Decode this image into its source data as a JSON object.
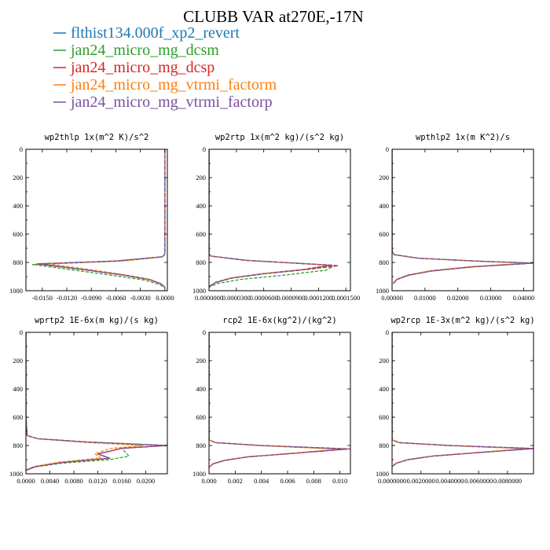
{
  "figure": {
    "title": "CLUBB VAR at270E,-17N"
  },
  "legend": [
    {
      "label": "flthist134.000f_xp2_revert",
      "color": "#1f77b4"
    },
    {
      "label": "jan24_micro_mg_dcsm",
      "color": "#2ca02c"
    },
    {
      "label": "jan24_micro_mg_dcsp",
      "color": "#d62728"
    },
    {
      "label": "jan24_micro_mg_vtrmi_factorm",
      "color": "#ff7f0e"
    },
    {
      "label": "jan24_micro_mg_vtrmi_factorp",
      "color": "#7b4fa0"
    }
  ],
  "chart_data": [
    {
      "type": "line",
      "title": "wp2thlp  1x(m^2 K)/s^2",
      "xlim": [
        -0.017,
        0.0003
      ],
      "ylim": [
        1000,
        0
      ],
      "x_ticks": [
        -0.015,
        -0.012,
        -0.009,
        -0.006,
        -0.003,
        0.0
      ],
      "x_tick_labels": [
        "-0.0150",
        "-0.0120",
        "-0.0090",
        "-0.0060",
        "-0.0030",
        "0.0000"
      ],
      "y_ticks": [
        0,
        200,
        400,
        600,
        800,
        1000
      ],
      "y_tick_labels": [
        "0",
        "200",
        "400",
        "600",
        "800",
        "1000"
      ],
      "series": [
        {
          "color": "#1f77b4",
          "x": [
            0.0,
            0.0,
            0.0,
            -0.0003,
            -0.006,
            -0.0155,
            -0.01,
            -0.005,
            -0.002,
            -0.0005,
            0.0
          ],
          "y": [
            0,
            600,
            740,
            760,
            790,
            810,
            850,
            890,
            920,
            950,
            975
          ]
        },
        {
          "color": "#2ca02c",
          "x": [
            0.0,
            0.0,
            0.0,
            -0.0003,
            -0.006,
            -0.0162,
            -0.011,
            -0.006,
            -0.0025,
            -0.0007,
            0.0
          ],
          "y": [
            0,
            600,
            740,
            760,
            792,
            815,
            855,
            895,
            925,
            955,
            978
          ]
        },
        {
          "color": "#d62728",
          "x": [
            0.0,
            0.0,
            0.0,
            -0.0003,
            -0.006,
            -0.0157,
            -0.01,
            -0.005,
            -0.002,
            -0.0005,
            0.0
          ],
          "y": [
            0,
            600,
            740,
            760,
            790,
            811,
            851,
            891,
            921,
            951,
            976
          ]
        },
        {
          "color": "#ff7f0e",
          "x": [
            0.0,
            0.0,
            0.0,
            -0.0003,
            -0.005,
            -0.0145,
            -0.0095,
            -0.0048,
            -0.0019,
            -0.0005,
            0.0
          ],
          "y": [
            0,
            600,
            740,
            762,
            790,
            808,
            848,
            888,
            918,
            948,
            974
          ]
        },
        {
          "color": "#7b4fa0",
          "x": [
            0.0,
            0.0,
            0.0,
            -0.0003,
            -0.006,
            -0.0154,
            -0.01,
            -0.005,
            -0.002,
            -0.0005,
            0.0
          ],
          "y": [
            0,
            600,
            740,
            760,
            790,
            810,
            850,
            890,
            920,
            950,
            975
          ]
        }
      ]
    },
    {
      "type": "line",
      "title": "wp2rtp  1x(m^2 kg)/(s^2 kg)",
      "xlim": [
        0.0,
        0.000155
      ],
      "ylim": [
        1000,
        0
      ],
      "x_ticks": [
        0.0,
        3e-05,
        6e-05,
        9e-05,
        0.00012,
        0.00015
      ],
      "x_tick_labels": [
        "0.0000000",
        "0.0000300",
        "0.0000600",
        "0.0000900",
        "0.0001200",
        "0.0001500"
      ],
      "y_ticks": [
        0,
        200,
        400,
        600,
        800,
        1000
      ],
      "y_tick_labels": [
        "0",
        "200",
        "400",
        "600",
        "800",
        "1000"
      ],
      "series": [
        {
          "color": "#1f77b4",
          "x": [
            0.0,
            0.0,
            0.0,
            2e-06,
            4e-05,
            0.000135,
            0.000105,
            6e-05,
            2.5e-05,
            8e-06,
            0.0
          ],
          "y": [
            0,
            600,
            740,
            755,
            785,
            820,
            850,
            880,
            910,
            940,
            970
          ]
        },
        {
          "color": "#2ca02c",
          "x": [
            0.0,
            0.0,
            0.0,
            2e-06,
            4.2e-05,
            0.000138,
            0.000128,
            8.2e-05,
            3.5e-05,
            1e-05,
            0.0
          ],
          "y": [
            0,
            600,
            740,
            755,
            785,
            822,
            855,
            890,
            920,
            948,
            975
          ]
        },
        {
          "color": "#d62728",
          "x": [
            0.0,
            0.0,
            0.0,
            2e-06,
            4.1e-05,
            0.000142,
            0.000106,
            6e-05,
            2.5e-05,
            8e-06,
            0.0
          ],
          "y": [
            0,
            600,
            740,
            755,
            786,
            823,
            851,
            881,
            911,
            941,
            971
          ]
        },
        {
          "color": "#ff7f0e",
          "x": [
            0.0,
            0.0,
            0.0,
            2e-06,
            4e-05,
            0.000132,
            0.000103,
            5.8e-05,
            2.4e-05,
            7e-06,
            0.0
          ],
          "y": [
            0,
            600,
            740,
            756,
            786,
            818,
            849,
            879,
            909,
            939,
            969
          ]
        },
        {
          "color": "#7b4fa0",
          "x": [
            0.0,
            0.0,
            0.0,
            2e-06,
            4e-05,
            0.000136,
            0.000104,
            6e-05,
            2.5e-05,
            8e-06,
            0.0
          ],
          "y": [
            0,
            600,
            740,
            755,
            785,
            820,
            850,
            880,
            910,
            940,
            970
          ]
        }
      ]
    },
    {
      "type": "line",
      "title": "wpthlp2  1x(m K^2)/s",
      "xlim": [
        0.0,
        0.043
      ],
      "ylim": [
        1000,
        0
      ],
      "x_ticks": [
        0.0,
        0.01,
        0.02,
        0.03,
        0.04
      ],
      "x_tick_labels": [
        "0.00000",
        "0.01000",
        "0.02000",
        "0.03000",
        "0.04000"
      ],
      "y_ticks": [
        0,
        200,
        400,
        600,
        800,
        1000
      ],
      "y_tick_labels": [
        "0",
        "200",
        "400",
        "600",
        "800",
        "1000"
      ],
      "series": [
        {
          "color": "#1f77b4",
          "x": [
            0.0,
            0.0,
            0.0,
            0.0006,
            0.008,
            0.025,
            0.043,
            0.025,
            0.012,
            0.005,
            0.0015,
            0.0003
          ],
          "y": [
            0,
            600,
            720,
            745,
            770,
            790,
            805,
            830,
            860,
            890,
            920,
            950
          ]
        },
        {
          "color": "#2ca02c",
          "x": [
            0.0,
            0.0,
            0.0,
            0.0006,
            0.008,
            0.025,
            0.0425,
            0.025,
            0.012,
            0.005,
            0.0015,
            0.0003
          ],
          "y": [
            0,
            600,
            720,
            745,
            770,
            790,
            806,
            831,
            861,
            891,
            921,
            951
          ]
        },
        {
          "color": "#d62728",
          "x": [
            0.0,
            0.0,
            0.0,
            0.0006,
            0.008,
            0.025,
            0.0428,
            0.025,
            0.012,
            0.005,
            0.0015,
            0.0003
          ],
          "y": [
            0,
            600,
            720,
            745,
            770,
            790,
            805,
            830,
            860,
            890,
            920,
            950
          ]
        },
        {
          "color": "#ff7f0e",
          "x": [
            0.0,
            0.0,
            0.0,
            0.0006,
            0.008,
            0.025,
            0.042,
            0.024,
            0.0115,
            0.0048,
            0.0014,
            0.0003
          ],
          "y": [
            0,
            600,
            720,
            746,
            771,
            791,
            804,
            829,
            859,
            889,
            919,
            949
          ]
        },
        {
          "color": "#7b4fa0",
          "x": [
            0.0,
            0.0,
            0.0,
            0.0006,
            0.008,
            0.025,
            0.043,
            0.025,
            0.012,
            0.005,
            0.0015,
            0.0003
          ],
          "y": [
            0,
            600,
            720,
            745,
            770,
            790,
            805,
            830,
            860,
            890,
            920,
            950
          ]
        }
      ]
    },
    {
      "type": "line",
      "title": "wprtp2  1E-6x(m kg)/(s kg)",
      "xlim": [
        0.0,
        0.0236
      ],
      "ylim": [
        1000,
        0
      ],
      "x_ticks": [
        0.0,
        0.004,
        0.008,
        0.012,
        0.016,
        0.02
      ],
      "x_tick_labels": [
        "0.0000",
        "0.0040",
        "0.0080",
        "0.0120",
        "0.0160",
        "0.0200"
      ],
      "y_ticks": [
        0,
        200,
        400,
        600,
        800,
        1000
      ],
      "y_tick_labels": [
        "0",
        "200",
        "400",
        "600",
        "800",
        "1000"
      ],
      "series": [
        {
          "color": "#1f77b4",
          "x": [
            0.0,
            0.0,
            0.0002,
            0.002,
            0.01,
            0.0235,
            0.016,
            0.012,
            0.014,
            0.006,
            0.0015,
            0.0
          ],
          "y": [
            0,
            600,
            730,
            752,
            775,
            800,
            820,
            860,
            890,
            920,
            950,
            975
          ]
        },
        {
          "color": "#2ca02c",
          "x": [
            0.0,
            0.0,
            0.0002,
            0.002,
            0.01,
            0.0232,
            0.016,
            0.0172,
            0.014,
            0.006,
            0.0015,
            0.0
          ],
          "y": [
            0,
            600,
            730,
            752,
            775,
            800,
            820,
            875,
            900,
            925,
            952,
            978
          ]
        },
        {
          "color": "#d62728",
          "x": [
            0.0,
            0.0,
            0.0002,
            0.002,
            0.01,
            0.0236,
            0.016,
            0.012,
            0.014,
            0.006,
            0.0015,
            0.0
          ],
          "y": [
            0,
            600,
            730,
            752,
            775,
            800,
            820,
            860,
            890,
            920,
            950,
            975
          ]
        },
        {
          "color": "#ff7f0e",
          "x": [
            0.0,
            0.0,
            0.0002,
            0.002,
            0.009,
            0.0195,
            0.014,
            0.0115,
            0.0125,
            0.0055,
            0.0014,
            0.0
          ],
          "y": [
            0,
            600,
            730,
            753,
            776,
            800,
            822,
            858,
            888,
            918,
            948,
            973
          ]
        },
        {
          "color": "#7b4fa0",
          "x": [
            0.0,
            0.0,
            0.0002,
            0.002,
            0.01,
            0.0234,
            0.016,
            0.012,
            0.014,
            0.006,
            0.0015,
            0.0
          ],
          "y": [
            0,
            600,
            730,
            752,
            775,
            800,
            820,
            860,
            890,
            920,
            950,
            975
          ]
        }
      ]
    },
    {
      "type": "line",
      "title": "rcp2  1E-6x(kg^2)/(kg^2)",
      "xlim": [
        0.0,
        0.0108
      ],
      "ylim": [
        1000,
        0
      ],
      "x_ticks": [
        0.0,
        0.002,
        0.004,
        0.006,
        0.008,
        0.01
      ],
      "x_tick_labels": [
        "0.000",
        "0.002",
        "0.004",
        "0.006",
        "0.008",
        "0.010"
      ],
      "y_ticks": [
        0,
        200,
        400,
        600,
        800,
        1000
      ],
      "y_tick_labels": [
        "0",
        "200",
        "400",
        "600",
        "800",
        "1000"
      ],
      "series": [
        {
          "color": "#1f77b4",
          "x": [
            0.0,
            0.0,
            0.0,
            0.0005,
            0.004,
            0.0106,
            0.0065,
            0.003,
            0.0012,
            0.0003,
            0.0
          ],
          "y": [
            0,
            600,
            760,
            780,
            800,
            825,
            855,
            880,
            905,
            930,
            955
          ]
        },
        {
          "color": "#2ca02c",
          "x": [
            0.0,
            0.0,
            0.0,
            0.0005,
            0.004,
            0.0103,
            0.0064,
            0.003,
            0.0012,
            0.0003,
            0.0
          ],
          "y": [
            0,
            600,
            760,
            780,
            800,
            826,
            856,
            881,
            906,
            931,
            956
          ]
        },
        {
          "color": "#d62728",
          "x": [
            0.0,
            0.0,
            0.0,
            0.0005,
            0.004,
            0.0108,
            0.0066,
            0.003,
            0.0012,
            0.0003,
            0.0
          ],
          "y": [
            0,
            600,
            760,
            780,
            800,
            824,
            854,
            879,
            904,
            929,
            954
          ]
        },
        {
          "color": "#ff7f0e",
          "x": [
            0.0,
            0.0,
            0.0,
            0.0005,
            0.0038,
            0.0099,
            0.0062,
            0.0029,
            0.0012,
            0.0003,
            0.0
          ],
          "y": [
            0,
            600,
            760,
            781,
            801,
            826,
            856,
            881,
            906,
            931,
            956
          ]
        },
        {
          "color": "#7b4fa0",
          "x": [
            0.0,
            0.0,
            0.0,
            0.0005,
            0.004,
            0.0105,
            0.0065,
            0.003,
            0.0012,
            0.0003,
            0.0
          ],
          "y": [
            0,
            600,
            760,
            780,
            800,
            825,
            855,
            880,
            905,
            930,
            955
          ]
        }
      ]
    },
    {
      "type": "line",
      "title": "wp2rcp  1E-3x(m^2 kg)/(s^2 kg)",
      "xlim": [
        0.0,
        0.0098
      ],
      "ylim": [
        1000,
        0
      ],
      "x_ticks": [
        0.0,
        0.002,
        0.004,
        0.006,
        0.008
      ],
      "x_tick_labels": [
        "0.0000000",
        "0.0020000",
        "0.0040000",
        "0.0060000",
        "0.0080000"
      ],
      "y_ticks": [
        0,
        200,
        400,
        600,
        800,
        1000
      ],
      "y_tick_labels": [
        "0",
        "200",
        "400",
        "600",
        "800",
        "1000"
      ],
      "series": [
        {
          "color": "#1f77b4",
          "x": [
            0.0,
            0.0,
            0.0,
            0.0005,
            0.004,
            0.0098,
            0.006,
            0.0028,
            0.0011,
            0.0003,
            0.0
          ],
          "y": [
            0,
            600,
            760,
            780,
            800,
            822,
            850,
            875,
            900,
            925,
            950
          ]
        },
        {
          "color": "#2ca02c",
          "x": [
            0.0,
            0.0,
            0.0,
            0.0005,
            0.004,
            0.0096,
            0.0059,
            0.0028,
            0.0011,
            0.0003,
            0.0
          ],
          "y": [
            0,
            600,
            760,
            780,
            800,
            823,
            851,
            876,
            901,
            926,
            951
          ]
        },
        {
          "color": "#d62728",
          "x": [
            0.0,
            0.0,
            0.0,
            0.0005,
            0.004,
            0.0098,
            0.0061,
            0.0028,
            0.0011,
            0.0003,
            0.0
          ],
          "y": [
            0,
            600,
            760,
            780,
            800,
            821,
            849,
            874,
            899,
            924,
            949
          ]
        },
        {
          "color": "#ff7f0e",
          "x": [
            0.0,
            0.0,
            0.0,
            0.0005,
            0.0038,
            0.0092,
            0.0057,
            0.0027,
            0.0011,
            0.0003,
            0.0
          ],
          "y": [
            0,
            600,
            760,
            781,
            801,
            822,
            851,
            876,
            901,
            926,
            951
          ]
        },
        {
          "color": "#7b4fa0",
          "x": [
            0.0,
            0.0,
            0.0,
            0.0005,
            0.004,
            0.0097,
            0.006,
            0.0028,
            0.0011,
            0.0003,
            0.0
          ],
          "y": [
            0,
            600,
            760,
            780,
            800,
            822,
            850,
            875,
            900,
            925,
            950
          ]
        }
      ]
    }
  ]
}
